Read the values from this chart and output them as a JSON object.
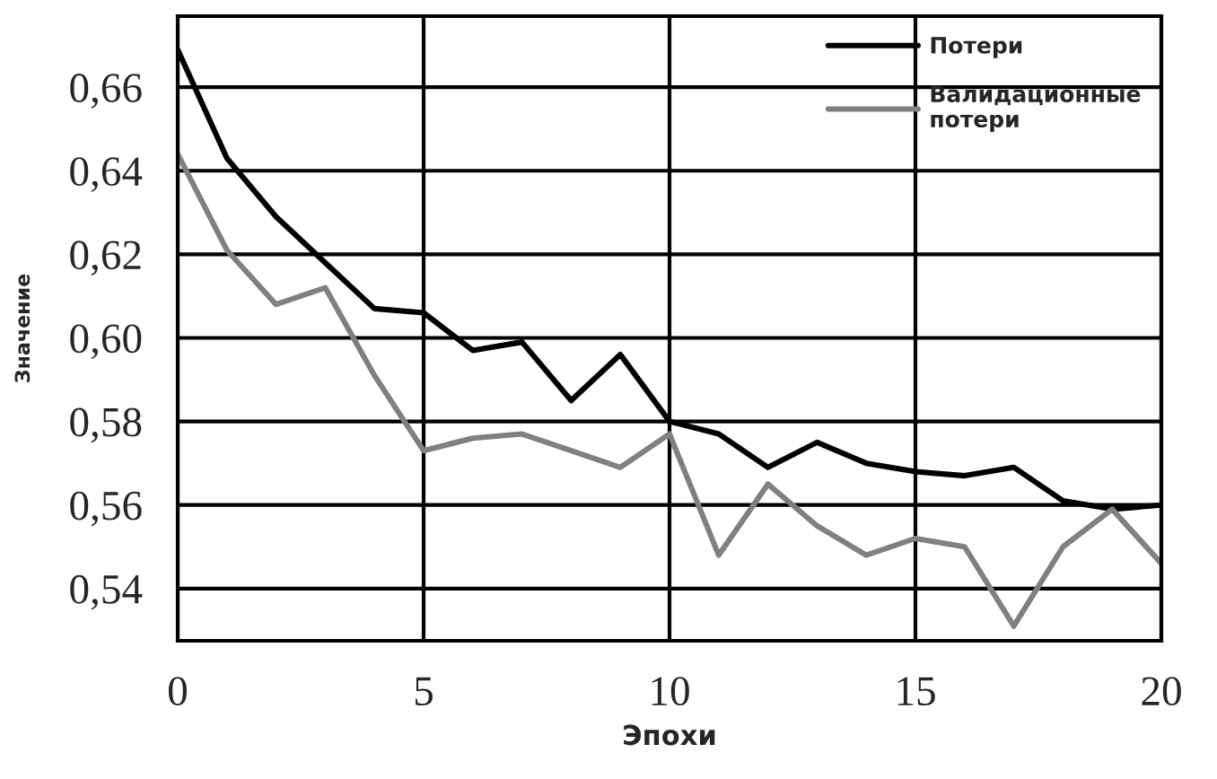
{
  "chart_data": {
    "type": "line",
    "xlabel": "Эпохи",
    "ylabel": "Значение",
    "x": [
      0,
      1,
      2,
      3,
      4,
      5,
      6,
      7,
      8,
      9,
      10,
      11,
      12,
      13,
      14,
      15,
      16,
      17,
      18,
      19,
      20
    ],
    "series": [
      {
        "name": "Потери",
        "color": "#000000",
        "values": [
          0.669,
          0.643,
          0.629,
          0.618,
          0.607,
          0.606,
          0.597,
          0.599,
          0.585,
          0.596,
          0.58,
          0.577,
          0.569,
          0.575,
          0.57,
          0.568,
          0.567,
          0.569,
          0.561,
          0.559,
          0.56
        ]
      },
      {
        "name": "Валидационные\nпотери",
        "color": "#808080",
        "values": [
          0.644,
          0.621,
          0.608,
          0.612,
          0.591,
          0.573,
          0.576,
          0.577,
          0.573,
          0.569,
          0.577,
          0.548,
          0.565,
          0.555,
          0.548,
          0.552,
          0.55,
          0.531,
          0.55,
          0.559,
          0.546
        ]
      }
    ],
    "xlim": [
      0,
      20
    ],
    "xticks": [
      0,
      5,
      10,
      15,
      20
    ],
    "ylim": [
      0.5275,
      0.677
    ],
    "yticks": [
      {
        "value": 0.54,
        "label": "0,54"
      },
      {
        "value": 0.56,
        "label": "0,56"
      },
      {
        "value": 0.58,
        "label": "0,58"
      },
      {
        "value": 0.6,
        "label": "0,60"
      },
      {
        "value": 0.62,
        "label": "0,62"
      },
      {
        "value": 0.64,
        "label": "0,64"
      },
      {
        "value": 0.66,
        "label": "0,66"
      }
    ],
    "grid": true,
    "legend": "top right",
    "line_style": "solid",
    "marker": "none"
  }
}
